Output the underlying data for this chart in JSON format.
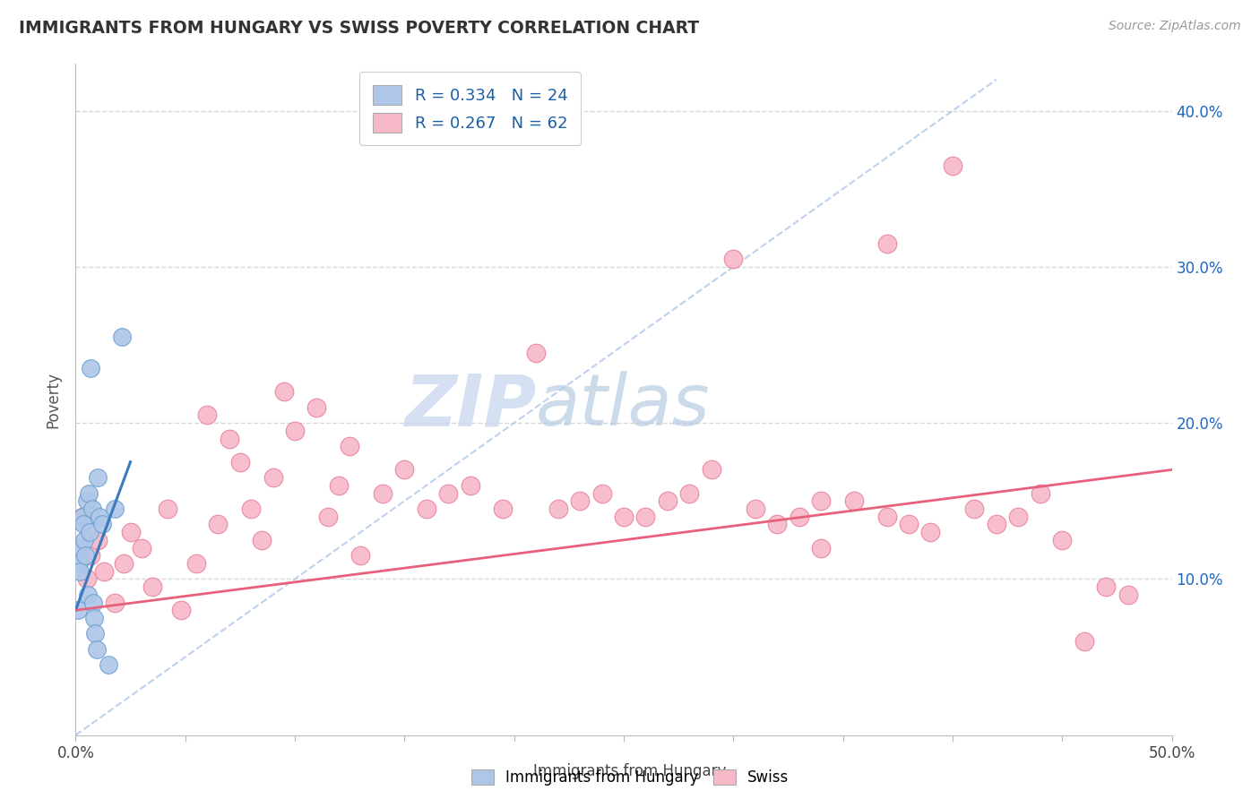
{
  "title": "IMMIGRANTS FROM HUNGARY VS SWISS POVERTY CORRELATION CHART",
  "source": "Source: ZipAtlas.com",
  "ylabel": "Poverty",
  "xlim": [
    0.0,
    50.0
  ],
  "ylim": [
    0.0,
    43.0
  ],
  "yticks": [
    10.0,
    20.0,
    30.0,
    40.0
  ],
  "xticks": [
    0.0,
    5.0,
    10.0,
    15.0,
    20.0,
    25.0,
    30.0,
    35.0,
    40.0,
    45.0,
    50.0
  ],
  "hungary_color": "#aec6e8",
  "swiss_color": "#f7b8c8",
  "hungary_edge": "#6aa0d0",
  "swiss_edge": "#e8819a",
  "hungary_trend_color": "#3a7abf",
  "swiss_trend_color": "#e8607a",
  "diagonal_color": "#aec6e8",
  "legend_R_hungary": "R = 0.334",
  "legend_N_hungary": "N = 24",
  "legend_R_swiss": "R = 0.267",
  "legend_N_swiss": "N = 62",
  "hungary_x": [
    0.1,
    0.15,
    0.2,
    0.25,
    0.3,
    0.35,
    0.4,
    0.45,
    0.5,
    0.55,
    0.6,
    0.65,
    0.7,
    0.75,
    0.8,
    0.85,
    0.9,
    0.95,
    1.0,
    1.1,
    1.2,
    1.5,
    1.8,
    2.1
  ],
  "hungary_y": [
    8.0,
    11.0,
    10.5,
    12.0,
    14.0,
    13.5,
    12.5,
    11.5,
    15.0,
    9.0,
    15.5,
    13.0,
    23.5,
    14.5,
    8.5,
    7.5,
    6.5,
    5.5,
    16.5,
    14.0,
    13.5,
    4.5,
    14.5,
    25.5
  ],
  "swiss_x": [
    0.3,
    0.5,
    0.7,
    1.0,
    1.3,
    1.8,
    2.2,
    2.5,
    3.0,
    3.5,
    4.2,
    4.8,
    5.5,
    6.0,
    6.5,
    7.0,
    7.5,
    8.0,
    8.5,
    9.0,
    9.5,
    10.0,
    11.0,
    11.5,
    12.0,
    12.5,
    13.0,
    14.0,
    15.0,
    16.0,
    17.0,
    18.0,
    19.5,
    21.0,
    22.0,
    23.0,
    24.0,
    25.0,
    26.0,
    27.0,
    28.0,
    29.0,
    30.0,
    31.0,
    32.0,
    33.0,
    34.0,
    35.5,
    37.0,
    38.0,
    39.0,
    40.0,
    41.0,
    42.0,
    43.0,
    44.0,
    45.0,
    46.0,
    47.0,
    48.0,
    34.0,
    37.0
  ],
  "swiss_y": [
    14.0,
    10.0,
    11.5,
    12.5,
    10.5,
    8.5,
    11.0,
    13.0,
    12.0,
    9.5,
    14.5,
    8.0,
    11.0,
    20.5,
    13.5,
    19.0,
    17.5,
    14.5,
    12.5,
    16.5,
    22.0,
    19.5,
    21.0,
    14.0,
    16.0,
    18.5,
    11.5,
    15.5,
    17.0,
    14.5,
    15.5,
    16.0,
    14.5,
    24.5,
    14.5,
    15.0,
    15.5,
    14.0,
    14.0,
    15.0,
    15.5,
    17.0,
    30.5,
    14.5,
    13.5,
    14.0,
    12.0,
    15.0,
    31.5,
    13.5,
    13.0,
    36.5,
    14.5,
    13.5,
    14.0,
    15.5,
    12.5,
    6.0,
    9.5,
    9.0,
    15.0,
    14.0
  ],
  "watermark_zip": "ZIP",
  "watermark_atlas": "atlas",
  "background_color": "#ffffff",
  "grid_color": "#d8d8d8"
}
